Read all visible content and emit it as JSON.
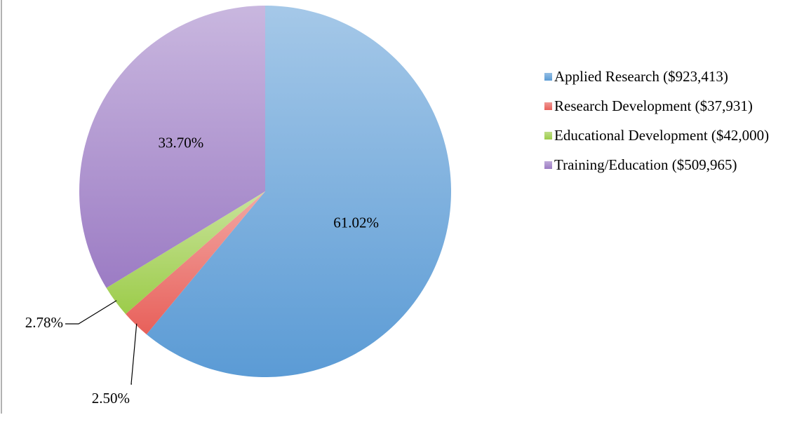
{
  "chart_data": {
    "type": "pie",
    "categories": [
      "Applied Research ($923,413)",
      "Research Development ($37,931)",
      "Educational Development ($42,000)",
      "Training/Education ($509,965)"
    ],
    "values": [
      61.02,
      2.5,
      2.78,
      33.7
    ],
    "value_labels": [
      "61.02%",
      "2.50%",
      "2.78%",
      "33.70%"
    ],
    "colors": [
      "#5b9bd5",
      "#e8605a",
      "#9ccc4a",
      "#9c7cc4"
    ],
    "legend": "right"
  }
}
